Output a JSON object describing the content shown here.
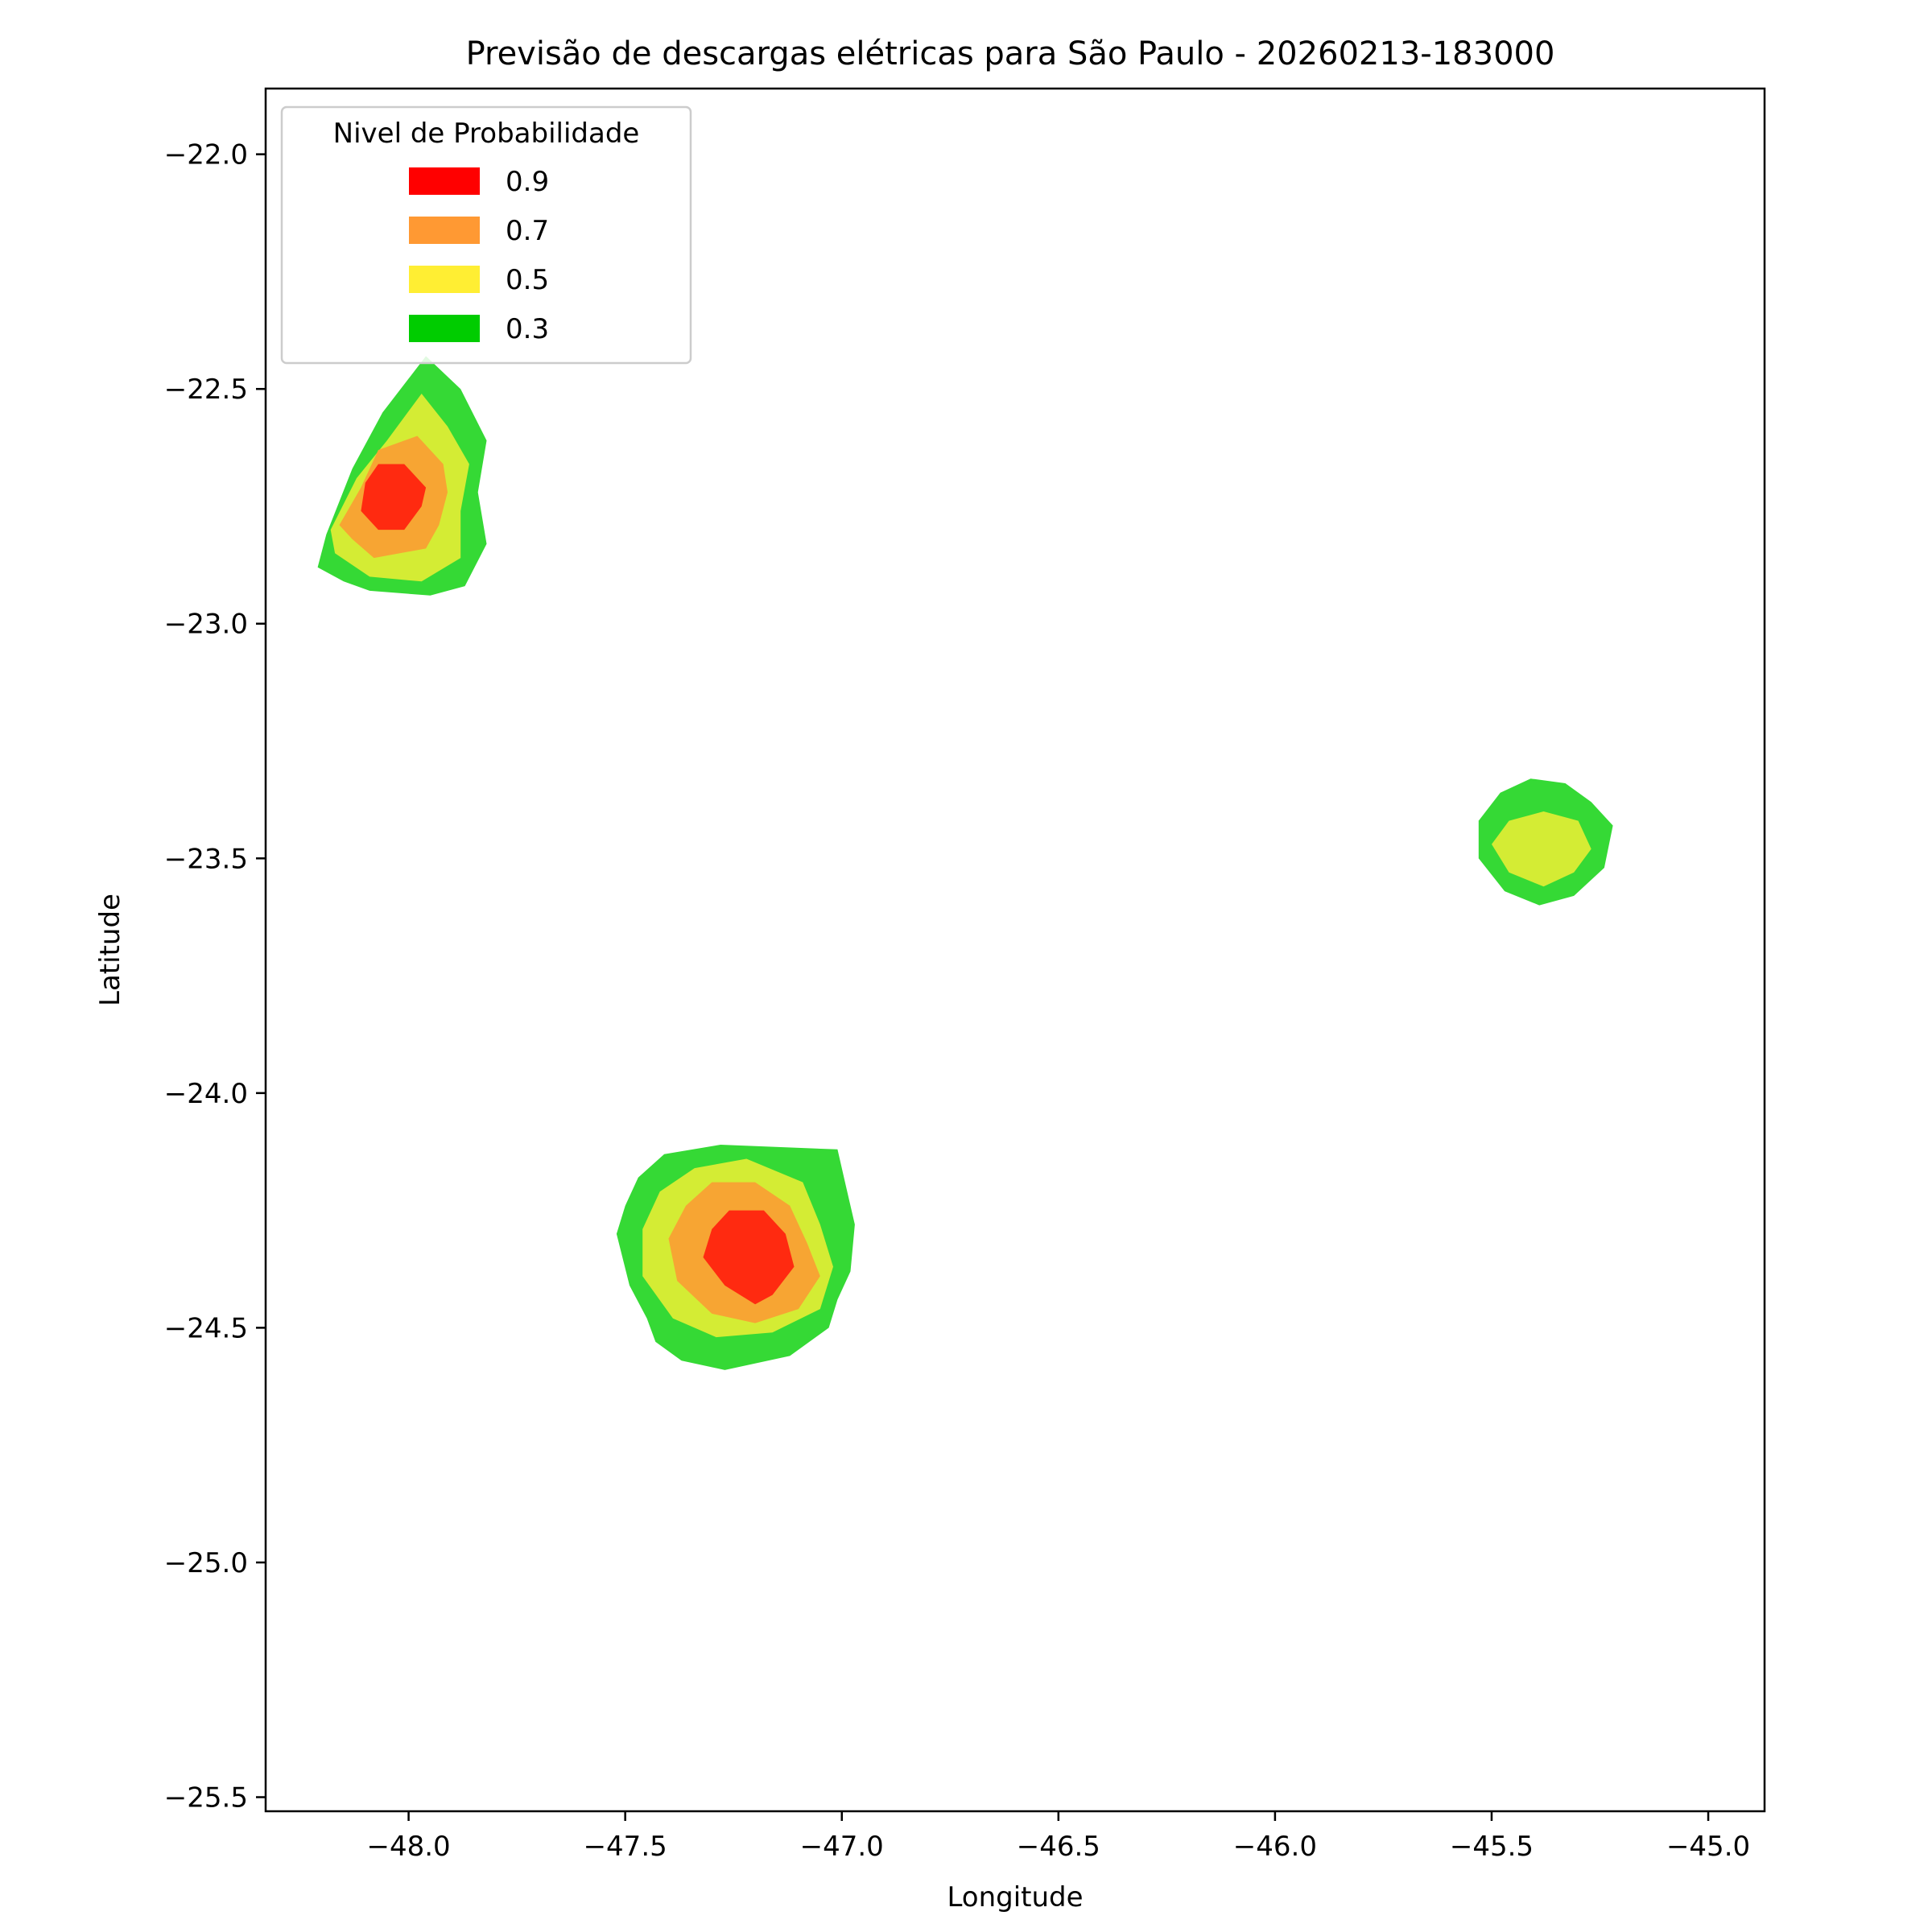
{
  "chart_data": {
    "type": "contour",
    "title": "Previsão de descargas elétricas para São Paulo - 20260213-183000",
    "xlabel": "Longitude",
    "ylabel": "Latitude",
    "xlim": [
      -48.33,
      -44.87
    ],
    "ylim": [
      -25.53,
      -21.86
    ],
    "xticks": [
      -48.0,
      -47.5,
      -47.0,
      -46.5,
      -46.0,
      -45.5,
      -45.0
    ],
    "xtick_labels": [
      "−48.0",
      "−47.5",
      "−47.0",
      "−46.5",
      "−46.0",
      "−45.5",
      "−45.0"
    ],
    "yticks": [
      -22.0,
      -22.5,
      -23.0,
      -23.5,
      -24.0,
      -24.5,
      -25.0,
      -25.5
    ],
    "ytick_labels": [
      "−22.0",
      "−22.5",
      "−23.0",
      "−23.5",
      "−24.0",
      "−24.5",
      "−25.0",
      "−25.5"
    ],
    "grid": false,
    "legend": {
      "title": "Nivel de Probabilidade",
      "location": "upper-left",
      "entries": [
        {
          "label": "0.9",
          "color": "#ff0000"
        },
        {
          "label": "0.7",
          "color": "#ff9933"
        },
        {
          "label": "0.5",
          "color": "#ffee33"
        },
        {
          "label": "0.3",
          "color": "#00cc00"
        }
      ]
    },
    "fill_colors": {
      "0.3": "#35d935",
      "0.5": "#d4ec34",
      "0.7": "#f7a533",
      "0.9": "#ff2a10"
    },
    "cells": [
      {
        "center": [
          -48.05,
          -22.73
        ],
        "levels": [
          {
            "level": "0.3",
            "polygon": [
              [
                -47.96,
                -22.43
              ],
              [
                -47.88,
                -22.5
              ],
              [
                -47.82,
                -22.61
              ],
              [
                -47.84,
                -22.72
              ],
              [
                -47.82,
                -22.83
              ],
              [
                -47.87,
                -22.92
              ],
              [
                -47.95,
                -22.94
              ],
              [
                -48.09,
                -22.93
              ],
              [
                -48.15,
                -22.91
              ],
              [
                -48.21,
                -22.88
              ],
              [
                -48.19,
                -22.81
              ],
              [
                -48.13,
                -22.67
              ],
              [
                -48.06,
                -22.55
              ]
            ]
          },
          {
            "level": "0.5",
            "polygon": [
              [
                -47.97,
                -22.51
              ],
              [
                -47.91,
                -22.58
              ],
              [
                -47.86,
                -22.66
              ],
              [
                -47.88,
                -22.76
              ],
              [
                -47.88,
                -22.86
              ],
              [
                -47.97,
                -22.91
              ],
              [
                -48.09,
                -22.9
              ],
              [
                -48.17,
                -22.85
              ],
              [
                -48.18,
                -22.8
              ],
              [
                -48.12,
                -22.69
              ],
              [
                -48.05,
                -22.61
              ]
            ]
          },
          {
            "level": "0.7",
            "polygon": [
              [
                -47.98,
                -22.6
              ],
              [
                -47.92,
                -22.66
              ],
              [
                -47.91,
                -22.72
              ],
              [
                -47.93,
                -22.79
              ],
              [
                -47.96,
                -22.84
              ],
              [
                -48.08,
                -22.86
              ],
              [
                -48.13,
                -22.82
              ],
              [
                -48.16,
                -22.79
              ],
              [
                -48.11,
                -22.71
              ],
              [
                -48.07,
                -22.63
              ]
            ]
          },
          {
            "level": "0.9",
            "polygon": [
              [
                -48.07,
                -22.66
              ],
              [
                -48.01,
                -22.66
              ],
              [
                -47.96,
                -22.71
              ],
              [
                -47.97,
                -22.75
              ],
              [
                -48.01,
                -22.8
              ],
              [
                -48.07,
                -22.8
              ],
              [
                -48.11,
                -22.76
              ],
              [
                -48.1,
                -22.7
              ]
            ]
          }
        ]
      },
      {
        "center": [
          -47.22,
          -24.35
        ],
        "levels": [
          {
            "level": "0.3",
            "polygon": [
              [
                -47.41,
                -24.13
              ],
              [
                -47.28,
                -24.11
              ],
              [
                -47.01,
                -24.12
              ],
              [
                -46.99,
                -24.2
              ],
              [
                -46.97,
                -24.28
              ],
              [
                -46.98,
                -24.38
              ],
              [
                -47.01,
                -24.44
              ],
              [
                -47.03,
                -24.5
              ],
              [
                -47.12,
                -24.56
              ],
              [
                -47.27,
                -24.59
              ],
              [
                -47.37,
                -24.57
              ],
              [
                -47.43,
                -24.53
              ],
              [
                -47.45,
                -24.48
              ],
              [
                -47.49,
                -24.41
              ],
              [
                -47.52,
                -24.3
              ],
              [
                -47.5,
                -24.24
              ],
              [
                -47.47,
                -24.18
              ]
            ]
          },
          {
            "level": "0.5",
            "polygon": [
              [
                -47.34,
                -24.16
              ],
              [
                -47.22,
                -24.14
              ],
              [
                -47.09,
                -24.19
              ],
              [
                -47.05,
                -24.28
              ],
              [
                -47.02,
                -24.37
              ],
              [
                -47.05,
                -24.46
              ],
              [
                -47.16,
                -24.51
              ],
              [
                -47.29,
                -24.52
              ],
              [
                -47.39,
                -24.48
              ],
              [
                -47.46,
                -24.39
              ],
              [
                -47.46,
                -24.29
              ],
              [
                -47.42,
                -24.21
              ]
            ]
          },
          {
            "level": "0.7",
            "polygon": [
              [
                -47.3,
                -24.19
              ],
              [
                -47.2,
                -24.19
              ],
              [
                -47.12,
                -24.24
              ],
              [
                -47.08,
                -24.32
              ],
              [
                -47.05,
                -24.39
              ],
              [
                -47.1,
                -24.46
              ],
              [
                -47.2,
                -24.49
              ],
              [
                -47.3,
                -24.47
              ],
              [
                -47.38,
                -24.4
              ],
              [
                -47.4,
                -24.31
              ],
              [
                -47.36,
                -24.24
              ]
            ]
          },
          {
            "level": "0.9",
            "polygon": [
              [
                -47.26,
                -24.25
              ],
              [
                -47.18,
                -24.25
              ],
              [
                -47.13,
                -24.3
              ],
              [
                -47.11,
                -24.37
              ],
              [
                -47.16,
                -24.43
              ],
              [
                -47.2,
                -24.45
              ],
              [
                -47.27,
                -24.41
              ],
              [
                -47.32,
                -24.35
              ],
              [
                -47.3,
                -24.29
              ]
            ]
          }
        ]
      },
      {
        "center": [
          -45.38,
          -23.48
        ],
        "levels": [
          {
            "level": "0.3",
            "polygon": [
              [
                -45.41,
                -23.33
              ],
              [
                -45.33,
                -23.34
              ],
              [
                -45.27,
                -23.38
              ],
              [
                -45.22,
                -23.43
              ],
              [
                -45.24,
                -23.52
              ],
              [
                -45.31,
                -23.58
              ],
              [
                -45.39,
                -23.6
              ],
              [
                -45.47,
                -23.57
              ],
              [
                -45.53,
                -23.5
              ],
              [
                -45.53,
                -23.42
              ],
              [
                -45.48,
                -23.36
              ]
            ]
          },
          {
            "level": "0.5",
            "polygon": [
              [
                -45.38,
                -23.4
              ],
              [
                -45.3,
                -23.42
              ],
              [
                -45.27,
                -23.48
              ],
              [
                -45.31,
                -23.53
              ],
              [
                -45.38,
                -23.56
              ],
              [
                -45.46,
                -23.53
              ],
              [
                -45.5,
                -23.47
              ],
              [
                -45.46,
                -23.42
              ]
            ]
          }
        ]
      }
    ]
  }
}
